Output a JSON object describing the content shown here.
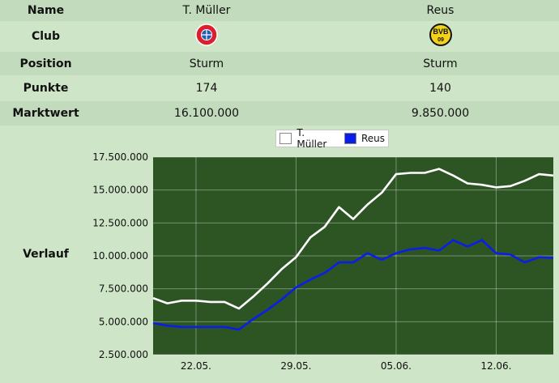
{
  "table": {
    "rows": [
      {
        "key": "name",
        "label": "Name",
        "p1": "T. Müller",
        "p2": "Reus"
      },
      {
        "key": "club",
        "label": "Club"
      },
      {
        "key": "position",
        "label": "Position",
        "p1": "Sturm",
        "p2": "Sturm"
      },
      {
        "key": "punkte",
        "label": "Punkte",
        "p1": "174",
        "p2": "140"
      },
      {
        "key": "marktwert",
        "label": "Marktwert",
        "p1": "16.100.000",
        "p2": "9.850.000"
      }
    ],
    "verlauf_label": "Verlauf",
    "club_logos": {
      "p1": "fc-bayern-logo",
      "p2": "bvb-09-logo"
    }
  },
  "colors": {
    "row_light": "#cfe5c7",
    "row_dark": "#c2dbbd",
    "plot_bg": "#2d5524",
    "series_white": "#ffffff",
    "series_blue": "#0a1ee8",
    "bvb_yellow": "#f2d31a",
    "bayern_red": "#dc1e2d"
  },
  "chart_data": {
    "type": "line",
    "y_ticks": [
      "2.500.000",
      "5.000.000",
      "7.500.000",
      "10.000.000",
      "12.500.000",
      "15.000.000",
      "17.500.000"
    ],
    "ylim": [
      2500000,
      17500000
    ],
    "x_ticks": [
      "22.05.",
      "29.05.",
      "05.06.",
      "12.06."
    ],
    "legend": [
      "T. Müller",
      "Reus"
    ],
    "series": [
      {
        "name": "T. Müller",
        "color": "#ffffff",
        "values": [
          6800000,
          6400000,
          6600000,
          6600000,
          6500000,
          6500000,
          6000000,
          6900000,
          7900000,
          9000000,
          9900000,
          11400000,
          12200000,
          13700000,
          12800000,
          13900000,
          14800000,
          16200000,
          16300000,
          16300000,
          16600000,
          16100000,
          15500000,
          15400000,
          15200000,
          15300000,
          15700000,
          16200000,
          16100000
        ]
      },
      {
        "name": "Reus",
        "color": "#0a1ee8",
        "values": [
          4900000,
          4700000,
          4600000,
          4600000,
          4600000,
          4600000,
          4400000,
          5200000,
          5900000,
          6700000,
          7600000,
          8200000,
          8700000,
          9500000,
          9500000,
          10200000,
          9700000,
          10200000,
          10500000,
          10600000,
          10400000,
          11200000,
          10700000,
          11200000,
          10200000,
          10100000,
          9500000,
          9900000,
          9850000
        ]
      }
    ],
    "x_tick_indices": [
      3,
      10,
      17,
      24
    ]
  }
}
